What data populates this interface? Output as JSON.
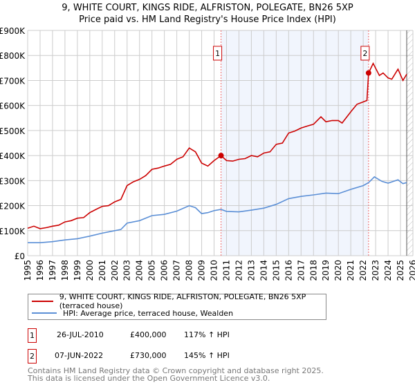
{
  "title": "9, WHITE COURT, KINGS RIDE, ALFRISTON, POLEGATE, BN26 5XP",
  "subtitle": "Price paid vs. HM Land Registry's House Price Index (HPI)",
  "chart_data": {
    "type": "line",
    "xlim": [
      1995,
      2026
    ],
    "ylim": [
      0,
      900000
    ],
    "yticks": [
      {
        "v": 0,
        "l": "£0"
      },
      {
        "v": 100000,
        "l": "£100K"
      },
      {
        "v": 200000,
        "l": "£200K"
      },
      {
        "v": 300000,
        "l": "£300K"
      },
      {
        "v": 400000,
        "l": "£400K"
      },
      {
        "v": 500000,
        "l": "£500K"
      },
      {
        "v": 600000,
        "l": "£600K"
      },
      {
        "v": 700000,
        "l": "£700K"
      },
      {
        "v": 800000,
        "l": "£800K"
      },
      {
        "v": 900000,
        "l": "£900K"
      }
    ],
    "xticks": [
      "1995",
      "1996",
      "1997",
      "1998",
      "1999",
      "2000",
      "2001",
      "2002",
      "2003",
      "2004",
      "2005",
      "2006",
      "2007",
      "2008",
      "2009",
      "2010",
      "2011",
      "2012",
      "2013",
      "2014",
      "2015",
      "2016",
      "2017",
      "2018",
      "2019",
      "2020",
      "2021",
      "2022",
      "2023",
      "2024",
      "2025",
      "2026"
    ],
    "grid": true,
    "shaded_range": [
      2010.56,
      2022.43
    ],
    "forecast_hatch_from": 2025.5,
    "series": [
      {
        "name": "9, WHITE COURT, KINGS RIDE, ALFRISTON, POLEGATE, BN26 5XP (terraced house)",
        "color": "#cc0000",
        "x": [
          1995,
          1995.5,
          1996,
          1996.5,
          1997,
          1997.5,
          1998,
          1998.5,
          1999,
          1999.5,
          2000,
          2000.5,
          2001,
          2001.5,
          2002,
          2002.5,
          2003,
          2003.5,
          2004,
          2004.5,
          2005,
          2005.5,
          2006,
          2006.5,
          2007,
          2007.5,
          2008,
          2008.5,
          2009,
          2009.5,
          2010,
          2010.56,
          2011,
          2011.5,
          2012,
          2012.5,
          2013,
          2013.5,
          2014,
          2014.5,
          2015,
          2015.5,
          2016,
          2016.5,
          2017,
          2017.5,
          2018,
          2018.6,
          2019,
          2019.5,
          2020,
          2020.3,
          2021,
          2021.5,
          2022.3,
          2022.43,
          2022.8,
          2023.3,
          2023.6,
          2024,
          2024.3,
          2024.8,
          2025.2,
          2025.5
        ],
        "y": [
          110000,
          118000,
          108000,
          112000,
          118000,
          122000,
          135000,
          140000,
          150000,
          152000,
          172000,
          185000,
          197000,
          200000,
          215000,
          225000,
          280000,
          295000,
          305000,
          320000,
          345000,
          350000,
          358000,
          365000,
          385000,
          395000,
          430000,
          415000,
          370000,
          358000,
          380000,
          400000,
          380000,
          378000,
          385000,
          388000,
          400000,
          395000,
          410000,
          415000,
          445000,
          450000,
          490000,
          498000,
          510000,
          518000,
          525000,
          555000,
          535000,
          540000,
          540000,
          530000,
          575000,
          605000,
          620000,
          730000,
          768000,
          720000,
          730000,
          710000,
          705000,
          745000,
          700000,
          725000
        ]
      },
      {
        "name": "HPI: Average price, terraced house, Wealden",
        "color": "#5b8fd6",
        "x": [
          1995,
          1996,
          1997,
          1998,
          1999,
          2000,
          2001,
          2002,
          2002.5,
          2003,
          2004,
          2005,
          2006,
          2007,
          2008,
          2008.5,
          2009,
          2009.5,
          2010,
          2010.56,
          2011,
          2012,
          2013,
          2014,
          2015,
          2016,
          2017,
          2018,
          2019,
          2020,
          2021,
          2022,
          2022.43,
          2022.9,
          2023.5,
          2024,
          2024.8,
          2025.2,
          2025.5
        ],
        "y": [
          52000,
          52000,
          56000,
          63000,
          68000,
          78000,
          90000,
          100000,
          105000,
          130000,
          140000,
          160000,
          165000,
          178000,
          200000,
          192000,
          168000,
          172000,
          180000,
          185000,
          177000,
          175000,
          182000,
          190000,
          205000,
          228000,
          237000,
          243000,
          250000,
          248000,
          265000,
          280000,
          292000,
          315000,
          297000,
          290000,
          303000,
          288000,
          292000
        ]
      }
    ]
  },
  "sales": [
    {
      "num": "1",
      "date": "26-JUL-2010",
      "price": "£400,000",
      "hpi": "117% ↑ HPI",
      "x": 2010.56,
      "y": 400000
    },
    {
      "num": "2",
      "date": "07-JUN-2022",
      "price": "£730,000",
      "hpi": "145% ↑ HPI",
      "x": 2022.43,
      "y": 730000
    }
  ],
  "footer": [
    "Contains HM Land Registry data © Crown copyright and database right 2025.",
    "This data is licensed under the Open Government Licence v3.0."
  ]
}
